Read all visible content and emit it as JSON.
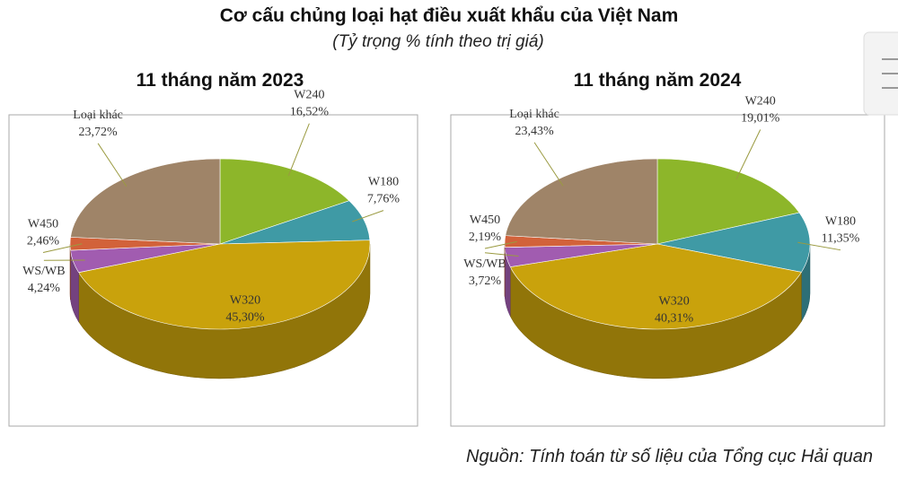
{
  "title": "Cơ cấu chủng loại hạt điều xuất khẩu của Việt Nam",
  "subtitle": "(Tỷ trọng % tính theo trị giá)",
  "source": "Nguồn: Tính toán từ số liệu của Tổng cục Hải quan",
  "chart_data": [
    {
      "type": "pie",
      "title": "11 tháng năm 2023",
      "categories": [
        "W240",
        "W180",
        "W320",
        "WS/WB",
        "W450",
        "Loại khác"
      ],
      "values": [
        16.52,
        7.76,
        45.3,
        4.24,
        2.46,
        23.72
      ],
      "value_labels": [
        "16,52%",
        "7,76%",
        "45,30%",
        "4,24%",
        "2,46%",
        "23,72%"
      ],
      "colors": [
        "#8db62a",
        "#3f9aa5",
        "#c9a20c",
        "#a15cb0",
        "#d2623a",
        "#9f8468"
      ]
    },
    {
      "type": "pie",
      "title": "11 tháng năm 2024",
      "categories": [
        "W240",
        "W180",
        "W320",
        "WS/WB",
        "W450",
        "Loại khác"
      ],
      "values": [
        19.01,
        11.35,
        40.31,
        3.72,
        2.19,
        23.43
      ],
      "value_labels": [
        "19,01%",
        "11,35%",
        "40,31%",
        "3,72%",
        "2,19%",
        "23,43%"
      ],
      "colors": [
        "#8db62a",
        "#3f9aa5",
        "#c9a20c",
        "#a15cb0",
        "#d2623a",
        "#9f8468"
      ]
    }
  ]
}
